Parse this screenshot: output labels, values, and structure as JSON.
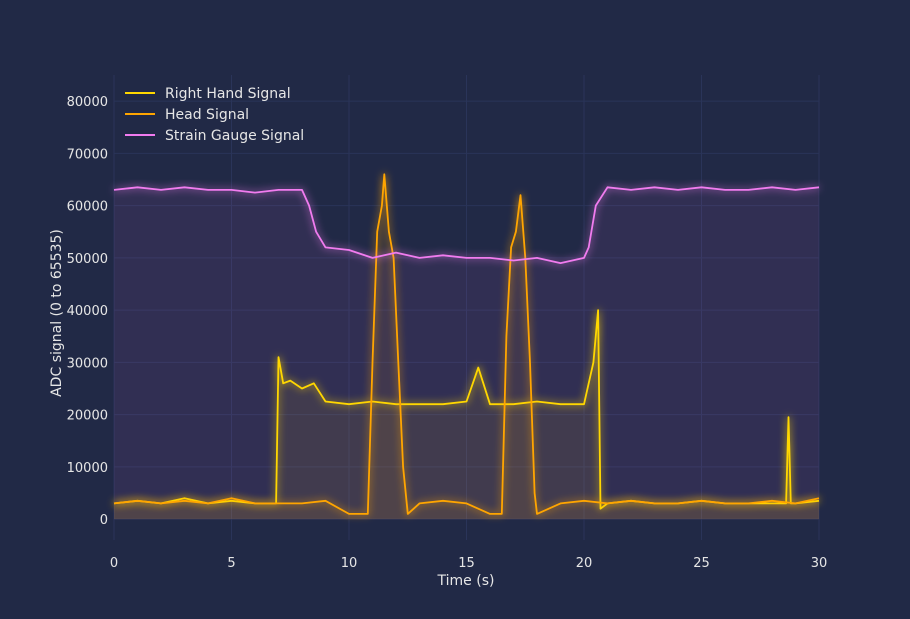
{
  "chart_data": {
    "type": "line",
    "title": "",
    "xlabel": "Time (s)",
    "ylabel": "ADC signal (0 to 65535)",
    "xlim": [
      0,
      30
    ],
    "ylim": [
      -4000,
      85000
    ],
    "x_ticks": [
      "0",
      "5",
      "10",
      "15",
      "20",
      "25",
      "30"
    ],
    "y_ticks": [
      "0",
      "10000",
      "20000",
      "30000",
      "40000",
      "50000",
      "60000",
      "70000",
      "80000"
    ],
    "grid": true,
    "legend_position": "top-left",
    "background": "#212946",
    "grid_color": "#2A3459",
    "series": [
      {
        "name": "Right Hand Signal",
        "color": "#FFD700",
        "x": [
          0,
          1,
          2,
          3,
          4,
          5,
          6,
          6.9,
          7.0,
          7.2,
          7.5,
          8.0,
          8.5,
          9.0,
          10,
          11,
          12,
          13,
          14,
          15,
          15.5,
          16,
          17,
          18,
          19,
          20,
          20.4,
          20.6,
          20.7,
          21,
          22,
          23,
          24,
          25,
          26,
          27,
          28,
          28.6,
          28.7,
          28.8,
          29,
          30
        ],
        "y": [
          3000,
          3500,
          3000,
          4000,
          3000,
          3500,
          3000,
          3000,
          31000,
          26000,
          26500,
          25000,
          26000,
          22500,
          22000,
          22500,
          22000,
          22000,
          22000,
          22500,
          29000,
          22000,
          22000,
          22500,
          22000,
          22000,
          30000,
          40000,
          2000,
          3000,
          3500,
          3000,
          3000,
          3500,
          3000,
          3000,
          3000,
          3000,
          19500,
          3000,
          3000,
          3500
        ]
      },
      {
        "name": "Head Signal",
        "color": "#FFA500",
        "x": [
          0,
          1,
          2,
          3,
          4,
          5,
          6,
          7,
          8,
          9,
          10,
          10.8,
          11.0,
          11.2,
          11.4,
          11.5,
          11.7,
          11.9,
          12.1,
          12.3,
          12.5,
          13,
          14,
          15,
          16,
          16.5,
          16.7,
          16.9,
          17.1,
          17.3,
          17.5,
          17.7,
          17.9,
          18,
          19,
          20,
          21,
          22,
          23,
          24,
          25,
          26,
          27,
          28,
          29,
          30
        ],
        "y": [
          3000,
          3500,
          3000,
          3500,
          3000,
          4000,
          3000,
          3000,
          3000,
          3500,
          1000,
          1000,
          30000,
          55000,
          60000,
          66000,
          55000,
          50000,
          30000,
          10000,
          1000,
          3000,
          3500,
          3000,
          1000,
          1000,
          35000,
          52000,
          55000,
          62000,
          50000,
          30000,
          5000,
          1000,
          3000,
          3500,
          3000,
          3500,
          3000,
          3000,
          3500,
          3000,
          3000,
          3500,
          3000,
          4000
        ]
      },
      {
        "name": "Strain Gauge Signal",
        "color": "#F17BEF",
        "x": [
          0,
          1,
          2,
          3,
          4,
          5,
          6,
          7,
          8,
          8.3,
          8.6,
          9,
          10,
          11,
          12,
          13,
          14,
          15,
          16,
          17,
          18,
          19,
          20,
          20.2,
          20.5,
          21,
          22,
          23,
          24,
          25,
          26,
          27,
          28,
          29,
          30
        ],
        "y": [
          63000,
          63500,
          63000,
          63500,
          63000,
          63000,
          62500,
          63000,
          63000,
          60000,
          55000,
          52000,
          51500,
          50000,
          51000,
          50000,
          50500,
          50000,
          50000,
          49500,
          50000,
          49000,
          50000,
          52000,
          60000,
          63500,
          63000,
          63500,
          63000,
          63500,
          63000,
          63000,
          63500,
          63000,
          63500
        ]
      }
    ]
  }
}
